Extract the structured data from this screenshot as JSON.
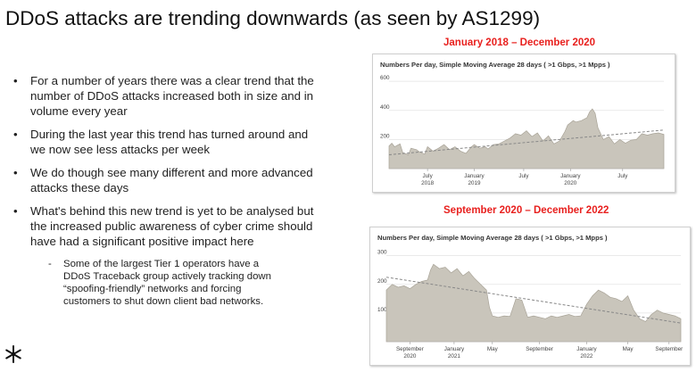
{
  "slide": {
    "title": "DDoS attacks are trending downwards (as seen by AS1299)",
    "bullets": [
      "For a number of years there was a clear trend that the number of DDoS attacks increased both in size and in volume every year",
      "During the last year this trend has turned around and we now see less attacks per week",
      "We do though see many different and more advanced attacks these days",
      "What's behind this new trend is yet to be analysed but the increased public awareness of cyber crime should have had a significant positive impact here"
    ],
    "sub_bullet": "Some of the largest Tier 1 operators have a DDoS Traceback group actively tracking down “spoofing-friendly” networks and forcing customers to shut down client bad networks.",
    "bullet_symbol": "•",
    "dash_symbol": "-",
    "period_color": "#e8201e"
  },
  "chart_data": [
    {
      "type": "area",
      "period_label": "January 2018 – December 2020",
      "title": "Numbers Per day, Simple Moving Average 28 days ( >1 Gbps, >1 Mpps )",
      "xlabel": "",
      "ylabel": "",
      "ylim": [
        0,
        650
      ],
      "yticks": [
        200,
        400,
        600
      ],
      "grid": true,
      "fill_color": "#c9c5bb",
      "line_color": "#a8a397",
      "trend_color": "#888888",
      "xticks": [
        {
          "x": 0.14,
          "label": [
            "July",
            "2018"
          ]
        },
        {
          "x": 0.31,
          "label": [
            "January",
            "2019"
          ]
        },
        {
          "x": 0.49,
          "label": [
            "July",
            ""
          ]
        },
        {
          "x": 0.66,
          "label": [
            "January",
            "2020"
          ]
        },
        {
          "x": 0.85,
          "label": [
            "July",
            ""
          ]
        }
      ],
      "series": [
        {
          "x": [
            0,
            0.01,
            0.02,
            0.04,
            0.05,
            0.07,
            0.08,
            0.1,
            0.11,
            0.13,
            0.14,
            0.16,
            0.18,
            0.2,
            0.22,
            0.24,
            0.26,
            0.28,
            0.3,
            0.31,
            0.33,
            0.35,
            0.36,
            0.38,
            0.4,
            0.42,
            0.44,
            0.46,
            0.48,
            0.5,
            0.52,
            0.54,
            0.56,
            0.58,
            0.6,
            0.62,
            0.64,
            0.65,
            0.67,
            0.68,
            0.7,
            0.72,
            0.73,
            0.74,
            0.75,
            0.76,
            0.78,
            0.8,
            0.82,
            0.84,
            0.86,
            0.88,
            0.9,
            0.92,
            0.94,
            0.96,
            0.98,
            1
          ],
          "values": [
            155,
            175,
            150,
            170,
            110,
            95,
            140,
            130,
            115,
            100,
            150,
            120,
            140,
            165,
            130,
            150,
            120,
            105,
            150,
            165,
            140,
            150,
            135,
            165,
            170,
            190,
            210,
            240,
            230,
            260,
            220,
            245,
            190,
            225,
            170,
            190,
            255,
            300,
            330,
            320,
            330,
            350,
            390,
            410,
            380,
            280,
            200,
            220,
            170,
            200,
            175,
            195,
            200,
            240,
            230,
            240,
            245,
            235
          ]
        }
      ],
      "trend": [
        95,
        265
      ]
    },
    {
      "type": "area",
      "period_label": "September 2020 – December 2022",
      "title": "Numbers Per day, Simple Moving Average 28 days ( >1 Gbps, >1 Mpps )",
      "xlabel": "",
      "ylabel": "",
      "ylim": [
        0,
        330
      ],
      "yticks": [
        100,
        200,
        300
      ],
      "grid": true,
      "fill_color": "#c9c5bb",
      "line_color": "#a8a397",
      "trend_color": "#888888",
      "xticks": [
        {
          "x": 0.08,
          "label": [
            "September",
            "2020"
          ]
        },
        {
          "x": 0.23,
          "label": [
            "January",
            "2021"
          ]
        },
        {
          "x": 0.36,
          "label": [
            "May",
            ""
          ]
        },
        {
          "x": 0.52,
          "label": [
            "September",
            ""
          ]
        },
        {
          "x": 0.68,
          "label": [
            "January",
            "2022"
          ]
        },
        {
          "x": 0.82,
          "label": [
            "May",
            ""
          ]
        },
        {
          "x": 0.96,
          "label": [
            "September",
            ""
          ]
        }
      ],
      "series": [
        {
          "x": [
            0,
            0.02,
            0.04,
            0.06,
            0.08,
            0.1,
            0.12,
            0.14,
            0.15,
            0.16,
            0.18,
            0.2,
            0.22,
            0.24,
            0.26,
            0.28,
            0.3,
            0.32,
            0.34,
            0.35,
            0.36,
            0.38,
            0.4,
            0.42,
            0.44,
            0.46,
            0.48,
            0.5,
            0.52,
            0.54,
            0.56,
            0.58,
            0.6,
            0.62,
            0.64,
            0.66,
            0.68,
            0.7,
            0.72,
            0.74,
            0.76,
            0.78,
            0.8,
            0.82,
            0.84,
            0.86,
            0.88,
            0.9,
            0.92,
            0.94,
            0.96,
            0.98,
            1
          ],
          "values": [
            180,
            200,
            190,
            195,
            185,
            200,
            210,
            215,
            250,
            270,
            255,
            260,
            240,
            255,
            230,
            245,
            220,
            200,
            180,
            120,
            90,
            85,
            90,
            88,
            150,
            145,
            85,
            90,
            85,
            80,
            90,
            85,
            90,
            95,
            88,
            90,
            130,
            160,
            180,
            170,
            155,
            150,
            140,
            160,
            110,
            80,
            70,
            95,
            110,
            100,
            95,
            90,
            80
          ]
        }
      ],
      "trend": [
        225,
        65
      ]
    }
  ]
}
